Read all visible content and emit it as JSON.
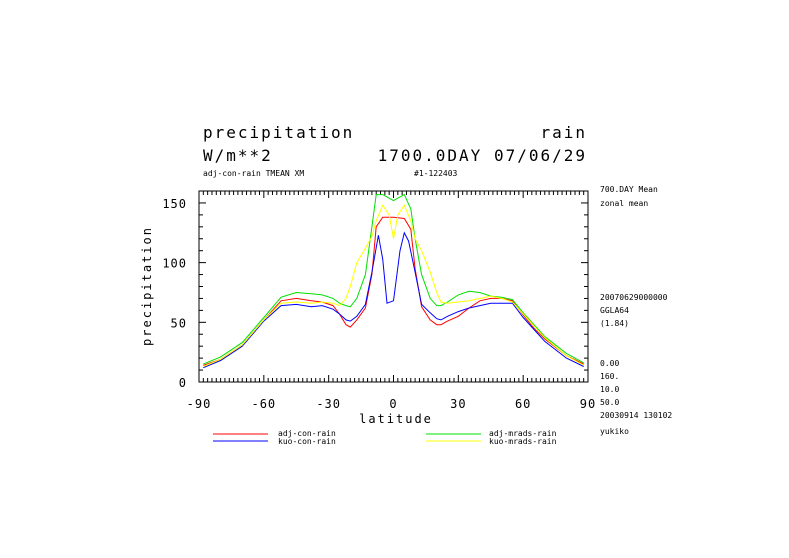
{
  "header": {
    "title_left": "precipitation",
    "title_right": "rain",
    "units": "W/m**2",
    "time": "1700.0DAY 07/06/29",
    "experiment": "adj-con-rain TMEAN XM",
    "run_id": "#1-122403"
  },
  "side_info": {
    "lines_top": [
      "700.DAY Mean",
      "zonal mean"
    ],
    "lines_mid": [
      "20070629000000",
      "GGLA64",
      "(1.84)"
    ],
    "lines_bottom": [
      "0.00",
      "160.",
      "10.0",
      "50.0",
      "20030914 130102",
      "yukiko"
    ]
  },
  "colors": {
    "adj-con-rain": "#ff0000",
    "kuo-con-rain": "#0000ff",
    "adj-mrads-rain": "#00e000",
    "kuo-mrads-rain": "#ffff00"
  },
  "chart_data": {
    "type": "line",
    "title": "precipitation",
    "xlabel": "latitude",
    "ylabel": "precipitation",
    "xlim": [
      -90,
      90
    ],
    "ylim": [
      0,
      160
    ],
    "xticks": [
      -90,
      -60,
      -30,
      0,
      30,
      60,
      90
    ],
    "yticks": [
      0,
      50,
      100,
      150
    ],
    "xtick_labels": [
      "-90",
      "-60",
      "-30",
      "0",
      "30",
      "60",
      "90"
    ],
    "ytick_labels": [
      "0",
      "50",
      "100",
      "150"
    ],
    "legend": [
      {
        "name": "adj-con-rain",
        "color": "#ff0000"
      },
      {
        "name": "kuo-con-rain",
        "color": "#0000ff"
      },
      {
        "name": "adj-mrads-rain",
        "color": "#00e000"
      },
      {
        "name": "kuo-mrads-rain",
        "color": "#ffff00"
      }
    ],
    "series": [
      {
        "name": "adj-con-rain",
        "color": "#ff0000",
        "x": [
          -88,
          -80,
          -70,
          -60,
          -52,
          -45,
          -38,
          -33,
          -28,
          -25,
          -22,
          -20,
          -17,
          -13,
          -10,
          -8,
          -5,
          0,
          5,
          8,
          10,
          13,
          17,
          20,
          22,
          25,
          30,
          35,
          40,
          45,
          50,
          55,
          60,
          65,
          70,
          80,
          88
        ],
        "y": [
          14,
          19,
          31,
          52,
          68,
          70,
          68,
          67,
          64,
          57,
          48,
          46,
          52,
          62,
          90,
          130,
          138,
          138,
          137,
          128,
          95,
          63,
          52,
          48,
          48,
          51,
          55,
          62,
          68,
          70,
          70,
          68,
          56,
          45,
          36,
          22,
          15
        ]
      },
      {
        "name": "kuo-con-rain",
        "color": "#0000ff",
        "x": [
          -88,
          -80,
          -70,
          -60,
          -52,
          -45,
          -38,
          -33,
          -28,
          -25,
          -22,
          -20,
          -17,
          -13,
          -10,
          -7,
          -5,
          -3,
          0,
          3,
          5,
          7,
          10,
          13,
          17,
          20,
          22,
          25,
          30,
          35,
          40,
          45,
          50,
          55,
          60,
          65,
          70,
          80,
          88
        ],
        "y": [
          12,
          18,
          30,
          51,
          64,
          65,
          63,
          64,
          61,
          57,
          52,
          51,
          55,
          65,
          92,
          123,
          103,
          66,
          68,
          110,
          125,
          118,
          92,
          65,
          58,
          53,
          52,
          55,
          59,
          62,
          64,
          66,
          66,
          66,
          54,
          44,
          34,
          20,
          13
        ]
      },
      {
        "name": "adj-mrads-rain",
        "color": "#00e000",
        "x": [
          -88,
          -80,
          -70,
          -60,
          -52,
          -45,
          -38,
          -33,
          -28,
          -25,
          -22,
          -20,
          -17,
          -13,
          -10,
          -8,
          -5,
          0,
          5,
          8,
          10,
          13,
          17,
          20,
          22,
          25,
          30,
          35,
          40,
          45,
          50,
          55,
          60,
          65,
          70,
          80,
          88
        ],
        "y": [
          15,
          21,
          33,
          54,
          71,
          75,
          74,
          73,
          70,
          66,
          64,
          63,
          70,
          90,
          130,
          157,
          157,
          152,
          157,
          145,
          120,
          90,
          70,
          64,
          64,
          67,
          73,
          76,
          75,
          72,
          71,
          69,
          58,
          48,
          38,
          24,
          16
        ]
      },
      {
        "name": "kuo-mrads-rain",
        "color": "#ffff00",
        "x": [
          -88,
          -80,
          -70,
          -60,
          -52,
          -45,
          -38,
          -33,
          -28,
          -25,
          -22,
          -20,
          -17,
          -13,
          -10,
          -8,
          -5,
          -2,
          0,
          2,
          5,
          8,
          10,
          13,
          17,
          20,
          22,
          25,
          30,
          35,
          40,
          45,
          50,
          55,
          60,
          65,
          70,
          80,
          88
        ],
        "y": [
          13,
          19,
          31,
          52,
          66,
          67,
          66,
          67,
          66,
          64,
          70,
          80,
          100,
          112,
          122,
          135,
          148,
          140,
          120,
          140,
          148,
          135,
          120,
          110,
          92,
          75,
          67,
          66,
          67,
          68,
          70,
          72,
          70,
          67,
          57,
          47,
          37,
          22,
          14
        ]
      }
    ]
  }
}
